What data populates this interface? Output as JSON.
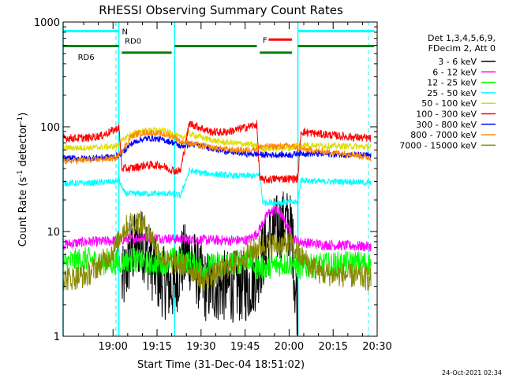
{
  "chart_data": {
    "type": "line",
    "title": "RHESSI Observing Summary Count Rates",
    "xlabel": "Start Time (31-Dec-04 18:51:02)",
    "ylabel_parts": [
      "Count Rate (s",
      "-1",
      " detector",
      "-1",
      ")"
    ],
    "y_scale": "log",
    "ylim": [
      1,
      1000
    ],
    "y_ticks": [
      1,
      10,
      100,
      1000
    ],
    "y_tick_labels": [
      "1",
      "10",
      "100",
      "1000"
    ],
    "xlim_minutes": [
      -8,
      99
    ],
    "x_ticks_minutes": [
      9,
      24,
      39,
      54,
      69,
      84,
      99
    ],
    "x_tick_labels": [
      "19:00",
      "19:15",
      "19:30",
      "19:45",
      "20:00",
      "20:15",
      "20:30"
    ],
    "legend_header": [
      "Det 1,3,4,5,6,9,",
      "FDecim 2, Att 0"
    ],
    "series": [
      {
        "name": "3 - 6 keV",
        "color": "#000000",
        "x": [
          -8,
          10,
          12,
          15,
          18,
          20,
          22,
          25,
          28,
          30,
          32,
          35,
          40,
          45,
          50,
          55,
          58,
          60,
          62,
          64,
          66,
          68,
          70,
          71,
          72
        ],
        "y": [
          null,
          null,
          3,
          6,
          8,
          7,
          5,
          3.5,
          3,
          3,
          5,
          6,
          3,
          3,
          3,
          3,
          4,
          6,
          8,
          10,
          11,
          12,
          10,
          3,
          2
        ]
      },
      {
        "name": "6 - 12 keV",
        "color": "#ff00ff",
        "x": [
          -8,
          0,
          5,
          10,
          20,
          30,
          40,
          50,
          55,
          58,
          60,
          62,
          64,
          66,
          68,
          70,
          72,
          80,
          90,
          97
        ],
        "y": [
          7.5,
          8,
          8,
          8.2,
          8.8,
          8.5,
          8.3,
          8.2,
          8.3,
          9.5,
          12,
          15,
          16,
          15,
          12,
          9,
          8,
          7.5,
          7.3,
          7.2
        ]
      },
      {
        "name": "12 - 25 keV",
        "color": "#00ff00",
        "x": [
          -8,
          0,
          5,
          10,
          15,
          20,
          25,
          30,
          35,
          40,
          45,
          50,
          55,
          58,
          60,
          65,
          70,
          72,
          80,
          90,
          97
        ],
        "y": [
          5,
          5.5,
          5,
          5,
          5.5,
          5,
          5,
          5.5,
          5,
          4.5,
          5,
          5,
          5.5,
          4.5,
          4.5,
          4.8,
          5,
          4.5,
          4.8,
          5,
          5
        ]
      },
      {
        "name": "25 - 50 keV",
        "color": "#00ffff",
        "x": [
          -8,
          0,
          10,
          11,
          13,
          16,
          20,
          24,
          28,
          32,
          35,
          40,
          45,
          50,
          55,
          58,
          59,
          60,
          65,
          70,
          72,
          73,
          80,
          90,
          97
        ],
        "y": [
          29,
          29,
          30,
          31,
          23,
          23,
          23,
          23,
          23,
          22,
          38,
          36,
          35,
          34,
          34,
          34,
          36,
          19,
          19,
          19,
          19,
          31,
          30,
          30,
          29
        ]
      },
      {
        "name": "50 - 100 keV",
        "color": "#dddd00",
        "x": [
          -8,
          0,
          10,
          11,
          14,
          18,
          22,
          26,
          30,
          32,
          35,
          40,
          45,
          50,
          55,
          58,
          60,
          65,
          70,
          72,
          80,
          90,
          97
        ],
        "y": [
          63,
          63,
          65,
          68,
          82,
          90,
          93,
          92,
          85,
          78,
          86,
          78,
          72,
          70,
          68,
          66,
          62,
          62,
          63,
          68,
          66,
          65,
          64
        ]
      },
      {
        "name": "100 - 300 keV",
        "color": "#ff0000",
        "x": [
          -8,
          0,
          5,
          10,
          11,
          12,
          15,
          20,
          25,
          30,
          32,
          35,
          38,
          42,
          46,
          50,
          55,
          58,
          59,
          60,
          65,
          70,
          72,
          73,
          80,
          90,
          97
        ],
        "y": [
          78,
          78,
          82,
          95,
          100,
          40,
          40,
          43,
          43,
          38,
          38,
          108,
          100,
          90,
          88,
          92,
          100,
          105,
          32,
          31,
          32,
          32,
          32,
          90,
          85,
          80,
          77
        ]
      },
      {
        "name": "300 - 800 keV",
        "color": "#0000ff",
        "x": [
          -8,
          0,
          10,
          12,
          15,
          18,
          22,
          26,
          30,
          32,
          35,
          40,
          45,
          50,
          55,
          58,
          60,
          65,
          70,
          72,
          80,
          90,
          97
        ],
        "y": [
          50,
          50,
          52,
          56,
          68,
          75,
          78,
          75,
          70,
          65,
          68,
          65,
          60,
          57,
          55,
          55,
          54,
          54,
          54,
          56,
          55,
          54,
          53
        ]
      },
      {
        "name": "800 - 7000 keV",
        "color": "#ff8800",
        "x": [
          -8,
          0,
          10,
          12,
          15,
          18,
          22,
          26,
          30,
          32,
          35,
          40,
          45,
          50,
          55,
          58,
          60,
          65,
          70,
          72,
          80,
          90,
          97
        ],
        "y": [
          47,
          48,
          50,
          58,
          80,
          87,
          88,
          85,
          80,
          72,
          70,
          65,
          62,
          60,
          60,
          62,
          65,
          65,
          66,
          62,
          58,
          55,
          50
        ]
      },
      {
        "name": "7000 - 15000 keV",
        "color": "#888800",
        "x": [
          -8,
          0,
          5,
          10,
          12,
          15,
          18,
          20,
          22,
          25,
          28,
          30,
          35,
          40,
          45,
          50,
          55,
          58,
          60,
          65,
          70,
          72,
          80,
          90,
          97
        ],
        "y": [
          3.5,
          3.8,
          5,
          7,
          10,
          12,
          12.5,
          11,
          9,
          6,
          5,
          5,
          4.5,
          3.5,
          4,
          5,
          6,
          7,
          7.5,
          7.5,
          7.5,
          6,
          4,
          3.8,
          3.5
        ]
      }
    ],
    "annotations": [
      {
        "text": "N",
        "color": "#00ffff"
      },
      {
        "text": "RD0",
        "color": "#008000"
      },
      {
        "text": "RD6",
        "color": "#008000"
      },
      {
        "text": "F",
        "color": "#ff0000"
      }
    ],
    "flag_bars": [
      {
        "label": "N",
        "color": "#00ffff",
        "level": 820,
        "segments": [
          [
            -8,
            11
          ],
          [
            72,
            98
          ]
        ]
      },
      {
        "label": "RD0",
        "color": "#008000",
        "level": 590,
        "segments": [
          [
            -8,
            11
          ],
          [
            30,
            58
          ],
          [
            72,
            98
          ]
        ]
      },
      {
        "label": "RD6",
        "color": "#008000",
        "level": 510,
        "segments": [
          [
            12,
            29
          ],
          [
            59,
            70
          ]
        ]
      },
      {
        "label": "F",
        "color": "#ff0000",
        "level": 680,
        "segments": [
          [
            62,
            70
          ]
        ]
      }
    ],
    "boundaries_solid": [
      -8,
      11,
      30,
      72
    ],
    "boundaries_dashed": [
      10,
      96
    ]
  },
  "footer_timestamp": "24-Oct-2021 02:34"
}
